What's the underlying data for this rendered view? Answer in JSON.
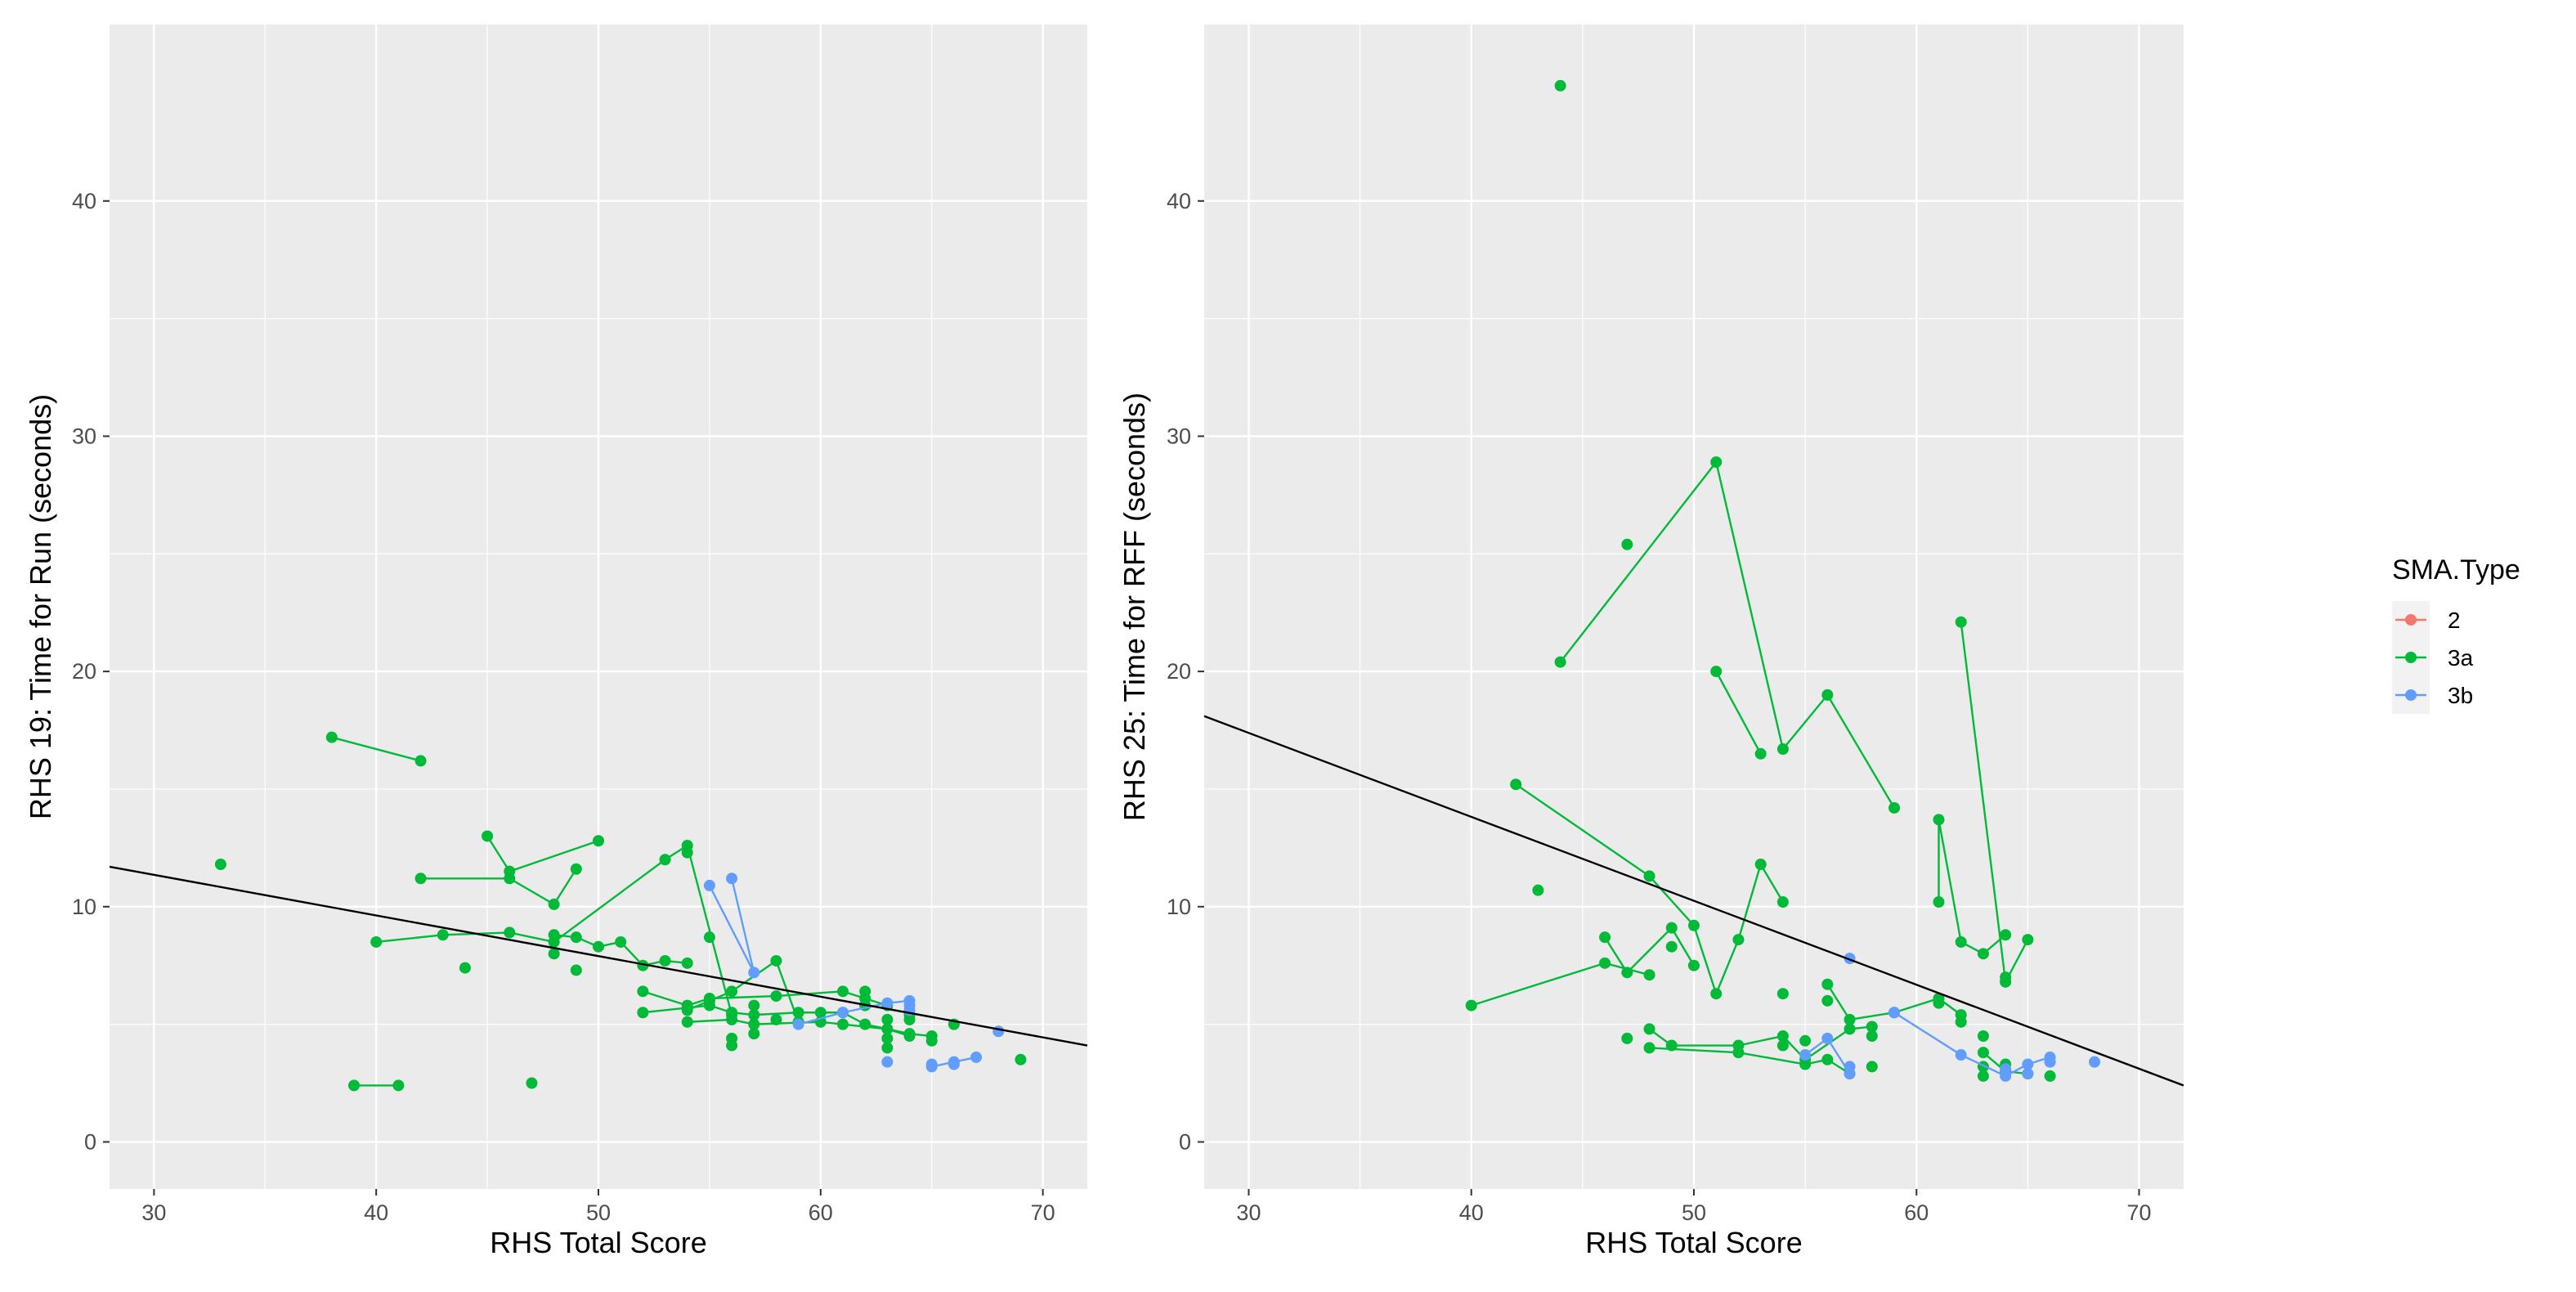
{
  "colors": {
    "2": "#F8766D",
    "3a": "#00BA38",
    "3b": "#619CFF",
    "panel": "#EBEBEB",
    "grid": "#FFFFFF",
    "regression": "#000000"
  },
  "chart_data": [
    {
      "type": "scatter",
      "xlabel": "RHS Total Score",
      "ylabel": "RHS 19: Time for Run (seconds)",
      "xlim": [
        28,
        72
      ],
      "ylim": [
        -2,
        47.5
      ],
      "xticks": [
        30,
        40,
        50,
        60,
        70
      ],
      "yticks": [
        0,
        10,
        20,
        30,
        40
      ],
      "regression": {
        "x0": 28,
        "y0": 11.7,
        "x1": 72,
        "y1": 4.1
      },
      "series": [
        {
          "name": "3a",
          "paths": [
            [
              [
                38,
                17.2
              ],
              [
                42,
                16.2
              ]
            ],
            [
              [
                42,
                11.2
              ],
              [
                46,
                11.2
              ],
              [
                48,
                10.1
              ],
              [
                49,
                11.6
              ]
            ],
            [
              [
                45,
                13
              ],
              [
                46,
                11.5
              ],
              [
                50,
                12.8
              ]
            ],
            [
              [
                39,
                2.4
              ],
              [
                41,
                2.4
              ]
            ],
            [
              [
                40,
                8.5
              ],
              [
                43,
                8.8
              ],
              [
                46,
                8.9
              ],
              [
                48,
                8.5
              ],
              [
                53,
                12
              ],
              [
                54,
                12.6
              ],
              [
                56,
                5.4
              ]
            ],
            [
              [
                48,
                8.8
              ],
              [
                49,
                8.7
              ],
              [
                50,
                8.3
              ],
              [
                51,
                8.5
              ],
              [
                52,
                7.5
              ],
              [
                53,
                7.7
              ],
              [
                54,
                7.6
              ]
            ],
            [
              [
                52,
                6.4
              ],
              [
                54,
                5.8
              ],
              [
                55,
                6.1
              ],
              [
                58,
                6.2
              ],
              [
                61,
                6.4
              ],
              [
                62,
                6.1
              ],
              [
                63,
                5.8
              ]
            ],
            [
              [
                52,
                5.5
              ],
              [
                55,
                5.8
              ],
              [
                56,
                5.5
              ],
              [
                57,
                5.4
              ],
              [
                59,
                5.5
              ],
              [
                61,
                5.5
              ],
              [
                62,
                5
              ],
              [
                64,
                4.6
              ],
              [
                65,
                4.5
              ]
            ],
            [
              [
                54,
                5.6
              ],
              [
                56,
                6.4
              ],
              [
                58,
                7.7
              ],
              [
                59,
                5.1
              ]
            ],
            [
              [
                54,
                5.1
              ],
              [
                56,
                5.2
              ],
              [
                57,
                5.0
              ],
              [
                60,
                5.1
              ],
              [
                61,
                5.0
              ],
              [
                63,
                4.8
              ],
              [
                64,
                4.5
              ]
            ]
          ],
          "points": [
            [
              33,
              11.8
            ],
            [
              44,
              7.4
            ],
            [
              47,
              2.5
            ],
            [
              48,
              8.0
            ],
            [
              49,
              7.3
            ],
            [
              54,
              12.3
            ],
            [
              55,
              8.7
            ],
            [
              56,
              4.4
            ],
            [
              56,
              4.1
            ],
            [
              57,
              4.6
            ],
            [
              60,
              5.5
            ],
            [
              61,
              6.4
            ],
            [
              62,
              6.4
            ],
            [
              62,
              5.8
            ],
            [
              63,
              5.2
            ],
            [
              63,
              4.4
            ],
            [
              63,
              4.0
            ],
            [
              64,
              5.4
            ],
            [
              64,
              5.2
            ],
            [
              65,
              4.3
            ],
            [
              66,
              5.0
            ],
            [
              69,
              3.5
            ],
            [
              55,
              6.0
            ],
            [
              57,
              5.8
            ],
            [
              58,
              5.2
            ]
          ]
        },
        {
          "name": "3b",
          "paths": [
            [
              [
                55,
                10.9
              ],
              [
                57,
                7.2
              ]
            ],
            [
              [
                56,
                11.2
              ],
              [
                57,
                7.2
              ]
            ],
            [
              [
                59,
                5.0
              ],
              [
                61,
                5.5
              ],
              [
                63,
                5.9
              ],
              [
                64,
                6.0
              ]
            ],
            [
              [
                65,
                3.2
              ],
              [
                66,
                3.4
              ],
              [
                67,
                3.6
              ]
            ]
          ],
          "points": [
            [
              57,
              7.2
            ],
            [
              63,
              3.4
            ],
            [
              64,
              5.8
            ],
            [
              64,
              5.6
            ],
            [
              65,
              3.3
            ],
            [
              66,
              3.3
            ],
            [
              68,
              4.7
            ]
          ]
        }
      ]
    },
    {
      "type": "scatter",
      "xlabel": "RHS Total Score",
      "ylabel": "RHS 25: Time for RFF (seconds)",
      "xlim": [
        28,
        72
      ],
      "ylim": [
        -2,
        47.5
      ],
      "xticks": [
        30,
        40,
        50,
        60,
        70
      ],
      "yticks": [
        0,
        10,
        20,
        30,
        40
      ],
      "regression": {
        "x0": 28,
        "y0": 18.1,
        "x1": 72,
        "y1": 2.4
      },
      "series": [
        {
          "name": "3a",
          "paths": [
            [
              [
                44,
                20.4
              ],
              [
                51,
                28.9
              ],
              [
                54,
                16.7
              ],
              [
                56,
                19
              ]
            ],
            [
              [
                51,
                20
              ],
              [
                53,
                16.5
              ]
            ],
            [
              [
                56,
                19
              ],
              [
                59,
                14.2
              ]
            ],
            [
              [
                42,
                15.2
              ],
              [
                48,
                11.3
              ],
              [
                50,
                9.2
              ],
              [
                51,
                6.3
              ],
              [
                52,
                8.6
              ],
              [
                53,
                11.8
              ],
              [
                54,
                10.2
              ]
            ],
            [
              [
                40,
                5.8
              ],
              [
                46,
                7.6
              ],
              [
                48,
                7.1
              ]
            ],
            [
              [
                46,
                8.7
              ],
              [
                47,
                7.2
              ],
              [
                49,
                9.1
              ],
              [
                50,
                7.5
              ]
            ],
            [
              [
                48,
                4.8
              ],
              [
                49,
                4.1
              ],
              [
                52,
                4.1
              ],
              [
                54,
                4.5
              ],
              [
                55,
                3.5
              ],
              [
                57,
                4.8
              ],
              [
                58,
                4.9
              ]
            ],
            [
              [
                48,
                4.0
              ],
              [
                52,
                3.8
              ],
              [
                55,
                3.3
              ],
              [
                56,
                3.5
              ],
              [
                57,
                2.9
              ]
            ],
            [
              [
                56,
                6.7
              ],
              [
                57,
                5.2
              ],
              [
                59,
                5.5
              ],
              [
                61,
                6.1
              ],
              [
                62,
                5.4
              ]
            ],
            [
              [
                61,
                13.7
              ],
              [
                61,
                10.2
              ]
            ],
            [
              [
                61,
                13.7
              ],
              [
                62,
                8.5
              ],
              [
                63,
                8.0
              ],
              [
                64,
                8.8
              ]
            ],
            [
              [
                62,
                22.1
              ],
              [
                64,
                6.8
              ]
            ],
            [
              [
                64,
                6.8
              ],
              [
                65,
                8.6
              ]
            ],
            [
              [
                63,
                3.8
              ],
              [
                64,
                3.0
              ],
              [
                65,
                2.9
              ]
            ]
          ],
          "points": [
            [
              44,
              44.9
            ],
            [
              43,
              10.7
            ],
            [
              47,
              25.4
            ],
            [
              47,
              4.4
            ],
            [
              49,
              8.3
            ],
            [
              51,
              6.3
            ],
            [
              54,
              6.3
            ],
            [
              54,
              4.1
            ],
            [
              55,
              4.3
            ],
            [
              56,
              6.0
            ],
            [
              58,
              3.2
            ],
            [
              58,
              4.5
            ],
            [
              61,
              5.9
            ],
            [
              62,
              5.1
            ],
            [
              63,
              4.5
            ],
            [
              63,
              3.2
            ],
            [
              63,
              2.8
            ],
            [
              64,
              7.0
            ],
            [
              64,
              3.3
            ],
            [
              66,
              2.8
            ]
          ]
        },
        {
          "name": "3b",
          "paths": [
            [
              [
                55,
                3.7
              ],
              [
                56,
                4.4
              ],
              [
                57,
                2.9
              ]
            ],
            [
              [
                59,
                5.5
              ],
              [
                62,
                3.7
              ],
              [
                64,
                2.8
              ],
              [
                65,
                3.3
              ],
              [
                66,
                3.6
              ]
            ]
          ],
          "points": [
            [
              57,
              7.8
            ],
            [
              57,
              3.2
            ],
            [
              64,
              3.1
            ],
            [
              65,
              2.9
            ],
            [
              66,
              3.4
            ],
            [
              68,
              3.4
            ]
          ]
        }
      ]
    }
  ],
  "legend": {
    "title": "SMA.Type",
    "items": [
      {
        "label": "2",
        "color": "#F8766D"
      },
      {
        "label": "3a",
        "color": "#00BA38"
      },
      {
        "label": "3b",
        "color": "#619CFF"
      }
    ]
  }
}
